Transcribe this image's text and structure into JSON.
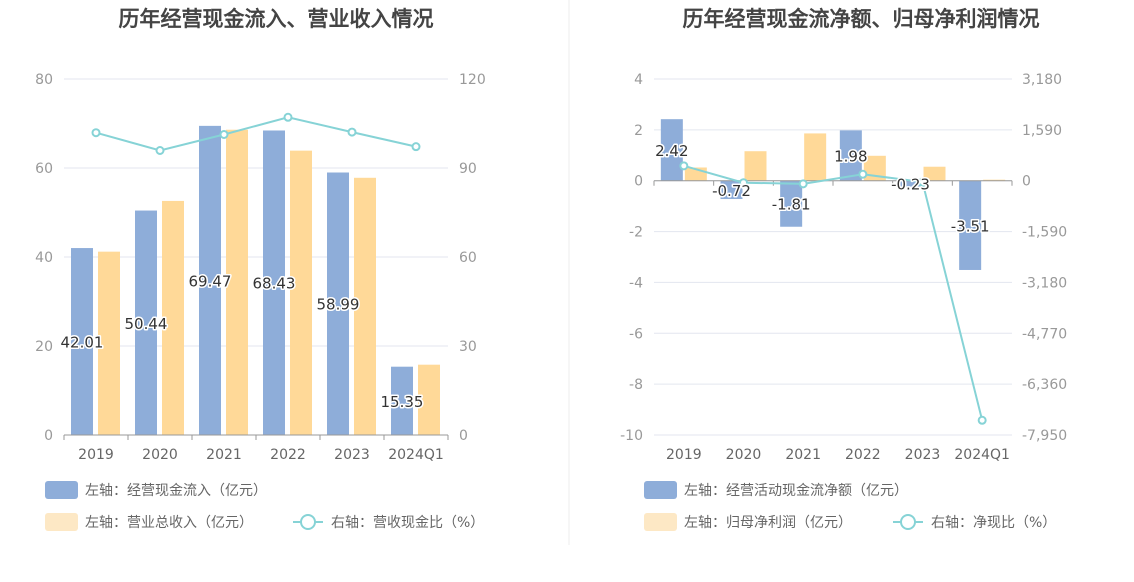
{
  "colors": {
    "bar_primary": "#8eadd9",
    "bar_secondary": "#ffd998",
    "legend_secondary": "#fde8c5",
    "line": "#86d3d6",
    "grid": "#e3e6ef",
    "axis_text": "#999999",
    "title_text": "#444444",
    "divider": "#ececec"
  },
  "chart_data": [
    {
      "type": "bar",
      "title": "历年经营现金流入、营业收入情况",
      "categories": [
        "2019",
        "2020",
        "2021",
        "2022",
        "2023",
        "2024Q1"
      ],
      "y_left": {
        "ylim": [
          0,
          80
        ],
        "ticks": [
          "0",
          "20",
          "40",
          "60",
          "80"
        ]
      },
      "y_right": {
        "ylim": [
          0,
          120
        ],
        "ticks": [
          "0",
          "30",
          "60",
          "90",
          "120"
        ]
      },
      "series": [
        {
          "name": "左轴：经营现金流入（亿元）",
          "kind": "bar",
          "axis": "left",
          "values": [
            42.01,
            50.44,
            69.47,
            68.43,
            58.99,
            15.35
          ],
          "labels": [
            "42.01",
            "50.44",
            "69.47",
            "68.43",
            "58.99",
            "15.35"
          ]
        },
        {
          "name": "左轴：营业总收入（亿元）",
          "kind": "bar",
          "axis": "left",
          "values": [
            41.2,
            52.6,
            68.6,
            63.9,
            57.8,
            15.8
          ]
        },
        {
          "name": "右轴：营收现金比（%）",
          "kind": "line",
          "axis": "right",
          "values": [
            101.9,
            95.9,
            101.3,
            107.1,
            102.1,
            97.2
          ]
        }
      ],
      "grid": true,
      "legend_position": "bottom-left"
    },
    {
      "type": "bar",
      "title": "历年经营现金流净额、归母净利润情况",
      "categories": [
        "2019",
        "2020",
        "2021",
        "2022",
        "2023",
        "2024Q1"
      ],
      "y_left": {
        "ylim": [
          -10,
          4
        ],
        "ticks": [
          "-10",
          "-8",
          "-6",
          "-4",
          "-2",
          "0",
          "2",
          "4"
        ]
      },
      "y_right": {
        "ylim": [
          -7950,
          3180
        ],
        "ticks": [
          "-7,950",
          "-6,360",
          "-4,770",
          "-3,180",
          "-1,590",
          "0",
          "1,590",
          "3,180"
        ]
      },
      "series": [
        {
          "name": "左轴：经营活动现金流净额（亿元）",
          "kind": "bar",
          "axis": "left",
          "values": [
            2.42,
            -0.72,
            -1.81,
            1.98,
            -0.23,
            -3.51
          ],
          "labels": [
            "2.42",
            "-0.72",
            "-1.81",
            "1.98",
            "-0.23",
            "-3.51"
          ]
        },
        {
          "name": "左轴：归母净利润（亿元）",
          "kind": "bar",
          "axis": "left",
          "values": [
            0.52,
            1.16,
            1.86,
            0.98,
            0.55,
            0.04
          ]
        },
        {
          "name": "右轴：净现比（%）",
          "kind": "line",
          "axis": "right",
          "values": [
            465,
            -62,
            -97,
            202,
            -42,
            -7490
          ]
        }
      ],
      "grid": true,
      "legend_position": "bottom-left"
    }
  ]
}
